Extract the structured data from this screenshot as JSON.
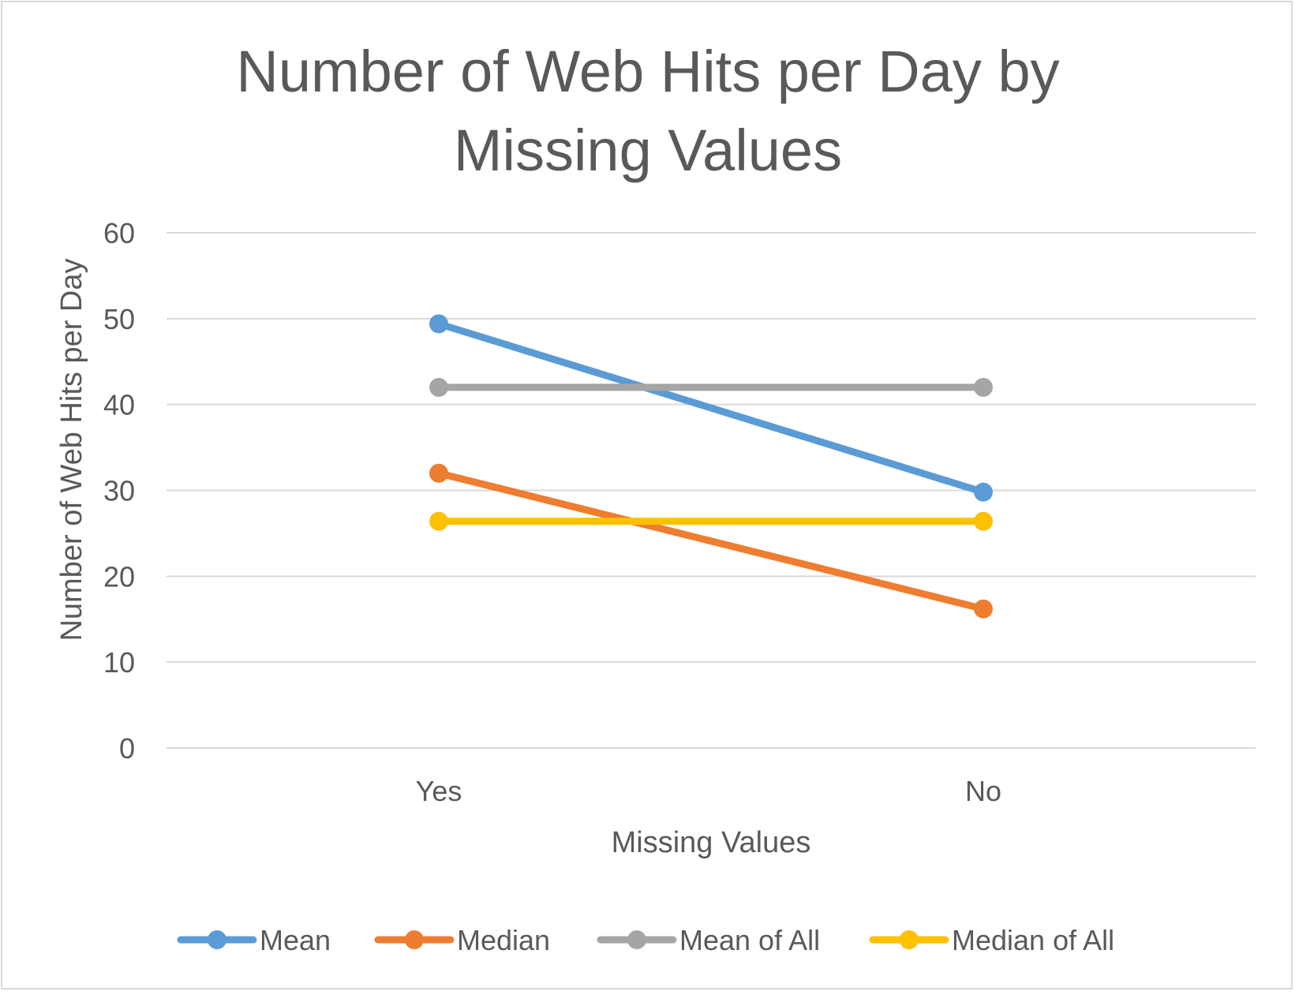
{
  "chart_data": {
    "type": "line",
    "title": "Number of Web Hits per Day by Missing Values",
    "title_lines": [
      "Number of Web Hits per Day by",
      "Missing Values"
    ],
    "xlabel": "Missing Values",
    "ylabel": "Number of Web Hits per Day",
    "categories": [
      "Yes",
      "No"
    ],
    "ylim": [
      0,
      60
    ],
    "yticks": [
      "0",
      "10",
      "20",
      "30",
      "40",
      "50",
      "60"
    ],
    "grid": true,
    "legend_position": "bottom",
    "series": [
      {
        "name": "Mean",
        "values": [
          49.4,
          29.8
        ],
        "color": "#5b9bd5"
      },
      {
        "name": "Median",
        "values": [
          32.0,
          16.2
        ],
        "color": "#ed7d31"
      },
      {
        "name": "Mean of All",
        "values": [
          42.0,
          42.0
        ],
        "color": "#a5a5a5"
      },
      {
        "name": "Median of All",
        "values": [
          26.4,
          26.4
        ],
        "color": "#ffc000"
      }
    ]
  }
}
